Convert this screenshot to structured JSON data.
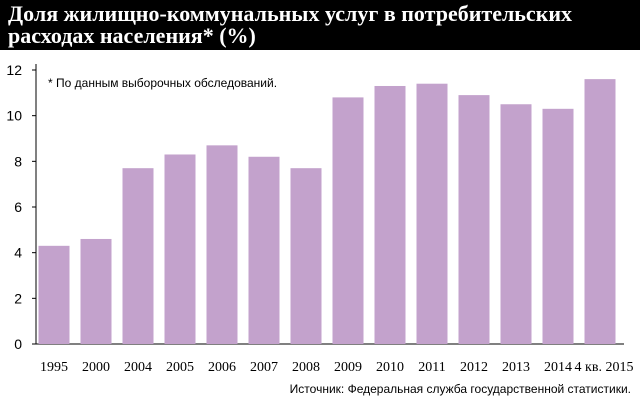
{
  "colors": {
    "bar": "#c3a2cc",
    "title_bg": "#000000",
    "title_text": "#ffffff",
    "axis": "#000000"
  },
  "chart_data": {
    "type": "bar",
    "title": "Доля жилищно-коммунальных услуг в потребительских расходах населения* (%)",
    "note": "* По данным выборочных обследований.",
    "source": "Источник:  Федеральная служба государственной статистики.",
    "xlabel": "",
    "ylabel": "",
    "ylim": [
      0,
      12
    ],
    "yticks": [
      0,
      2,
      4,
      6,
      8,
      10,
      12
    ],
    "grid": false,
    "categories": [
      "1995",
      "2000",
      "2004",
      "2005",
      "2006",
      "2007",
      "2008",
      "2009",
      "2010",
      "2011",
      "2012",
      "2013",
      "2014",
      "4 кв. 2015"
    ],
    "values": [
      4.3,
      4.6,
      7.7,
      8.3,
      8.7,
      8.2,
      7.7,
      10.8,
      11.3,
      11.4,
      10.9,
      10.5,
      10.3,
      11.6
    ]
  }
}
